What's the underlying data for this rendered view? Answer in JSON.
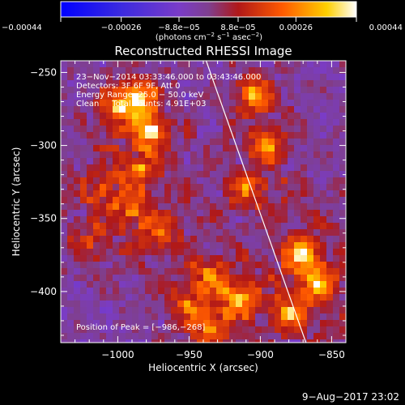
{
  "chart_data": {
    "type": "heatmap",
    "title": "Reconstructed RHESSI Image",
    "xlabel": "Heliocentric X (arcsec)",
    "ylabel": "Heliocentric Y (arcsec)",
    "xlim": [
      -1040,
      -840
    ],
    "ylim": [
      -435,
      -242
    ],
    "xticks": [
      -1000,
      -950,
      -900,
      -850
    ],
    "xtick_labels": [
      "−1000",
      "−950",
      "−900",
      "−850"
    ],
    "yticks": [
      -400,
      -350,
      -300,
      -250
    ],
    "ytick_labels": [
      "−400",
      "−350",
      "−300",
      "−250"
    ],
    "colorbar": {
      "range": [
        -0.00044,
        0.00044
      ],
      "ticks": [
        -0.00044,
        -0.00026,
        -8.8e-05,
        8.8e-05,
        0.00026,
        0.00044
      ],
      "tick_labels": [
        "−0.00044",
        "−0.00026",
        "−8.8e−05",
        "8.8e−05",
        "0.00026",
        "0.00044"
      ],
      "units_text": "(photons cm",
      "units_sup1": "−2",
      "units_mid": " s",
      "units_sup2": "−1",
      "units_mid2": " asec",
      "units_sup3": "−2",
      "units_end": ")"
    },
    "info_lines": [
      "23−Nov−2014 03:33:46.000 to 03:43:46.000",
      "Detectors: 3F 6F 9F, Att 0",
      "Energy Range: 25.0 − 50.0 keV",
      "Clean     Total counts: 4.91E+03"
    ],
    "peak_label": "Position of Peak = [−986,−268]",
    "peak_position": [
      -986,
      -268
    ],
    "limb_line": [
      [
        -938,
        -242
      ],
      [
        -868,
        -435
      ]
    ],
    "hotspots": [
      {
        "x": -977,
        "y": -290,
        "value": 0.00042
      },
      {
        "x": -986,
        "y": -268,
        "value": 0.00044
      },
      {
        "x": -1000,
        "y": -275,
        "value": 0.0003
      },
      {
        "x": -985,
        "y": -315,
        "value": 0.00022
      },
      {
        "x": -1010,
        "y": -330,
        "value": 0.00018
      },
      {
        "x": -990,
        "y": -345,
        "value": 0.0002
      },
      {
        "x": -970,
        "y": -360,
        "value": 0.00022
      },
      {
        "x": -1020,
        "y": -365,
        "value": 0.00015
      },
      {
        "x": -905,
        "y": -265,
        "value": 0.00038
      },
      {
        "x": -895,
        "y": -300,
        "value": 0.00032
      },
      {
        "x": -910,
        "y": -330,
        "value": 0.00024
      },
      {
        "x": -870,
        "y": -375,
        "value": 0.00042
      },
      {
        "x": -860,
        "y": -395,
        "value": 0.00036
      },
      {
        "x": -880,
        "y": -415,
        "value": 0.00034
      },
      {
        "x": -915,
        "y": -405,
        "value": 0.00032
      },
      {
        "x": -935,
        "y": -390,
        "value": 0.00026
      },
      {
        "x": -935,
        "y": -425,
        "value": 0.00028
      },
      {
        "x": -950,
        "y": -410,
        "value": 0.0002
      }
    ],
    "grid": false
  },
  "footer": {
    "date": "9−Aug−2017 23:02"
  }
}
